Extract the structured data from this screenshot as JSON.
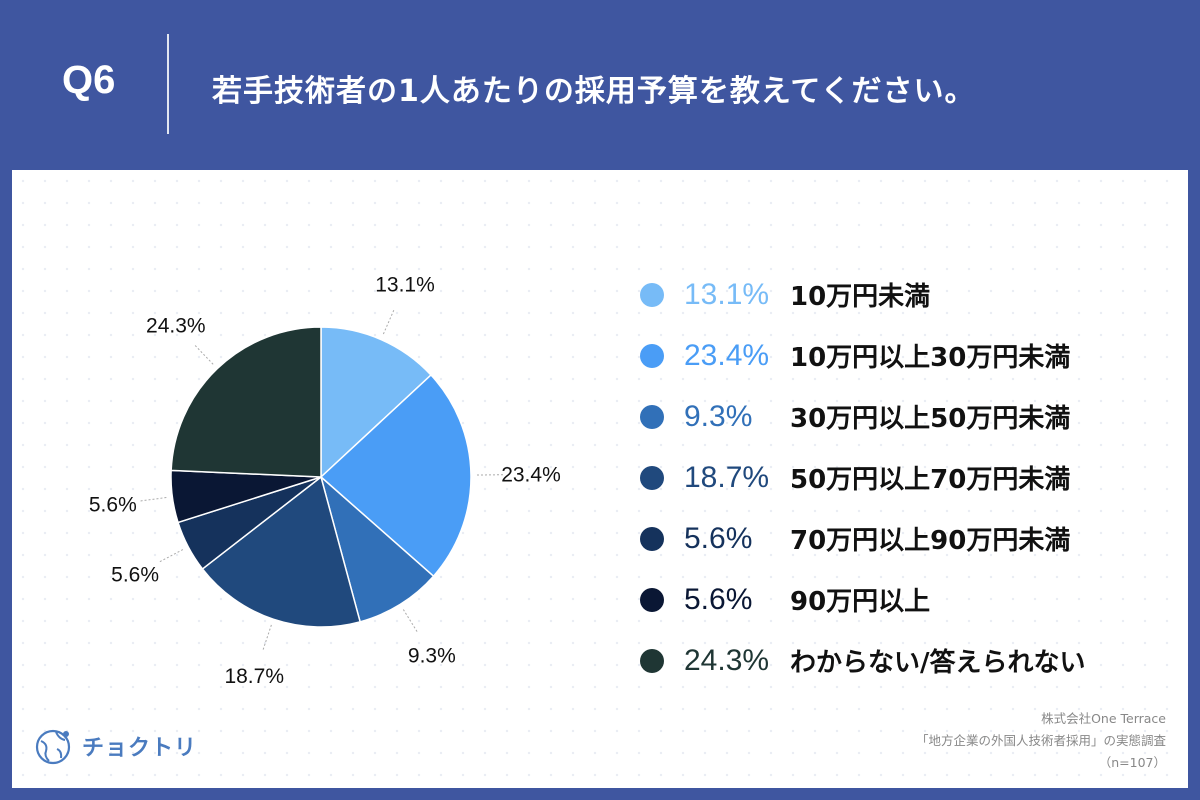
{
  "header": {
    "q_label": "Q6",
    "question": "若手技術者の1人あたりの採用予算を教えてください。"
  },
  "chart_data": {
    "type": "pie",
    "categories": [
      "10万円未満",
      "10万円以上30万円未満",
      "30万円以上50万円未満",
      "50万円以上70万円未満",
      "70万円以上90万円未満",
      "90万円以上",
      "わからない/答えられない"
    ],
    "values": [
      13.1,
      23.4,
      9.3,
      18.7,
      5.6,
      5.6,
      24.3
    ],
    "labels": [
      "13.1%",
      "23.4%",
      "9.3%",
      "18.7%",
      "5.6%",
      "5.6%",
      "24.3%"
    ],
    "colors": [
      "#77bbf7",
      "#4a9df6",
      "#3170b8",
      "#20497d",
      "#15325c",
      "#0a1734",
      "#1f3634"
    ],
    "legend_text_colors": [
      "#77bbf7",
      "#4a9df6",
      "#3170b8",
      "#20497d",
      "#15325c",
      "#0a1734",
      "#1f3634"
    ],
    "start_angle_deg": 0,
    "direction": "clockwise",
    "legend_position": "right"
  },
  "footer": {
    "source_lines": [
      "株式会社One Terrace",
      "「地方企業の外国人技術者採用」の実態調査",
      "（n=107）"
    ],
    "logo_text": "チョクトリ",
    "logo_icon": "globe-icon"
  }
}
